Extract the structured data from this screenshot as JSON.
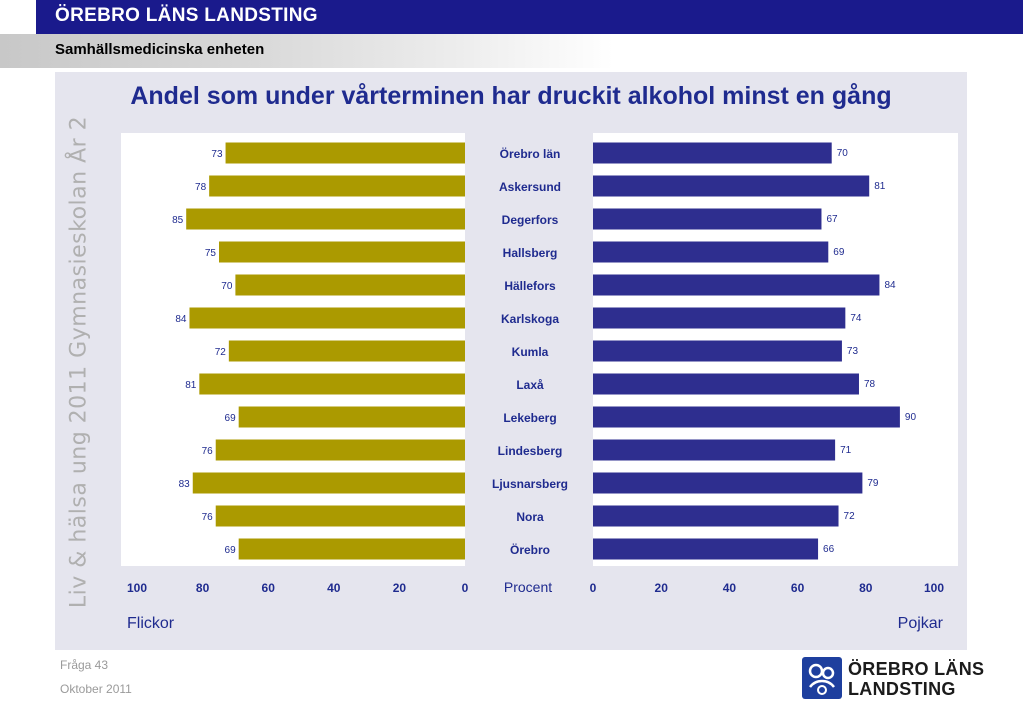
{
  "header": {
    "org_title": "ÖREBRO LÄNS LANDSTING",
    "subtitle": "Samhällsmedicinska enheten"
  },
  "side_text": "Liv & hälsa ung 2011 Gymnasieskolan År 2",
  "footer": {
    "question": "Fråga 43",
    "date": "Oktober 2011"
  },
  "logo": {
    "line1": "ÖREBRO LÄNS",
    "line2": "LANDSTING",
    "icon": "landsting-logo-icon",
    "color": "#1e3f9e"
  },
  "chart_data": {
    "type": "bar",
    "orientation": "horizontal-butterfly",
    "title": "Andel som under vårterminen har druckit alkohol minst en gång",
    "categories": [
      "Örebro län",
      "Askersund",
      "Degerfors",
      "Hallsberg",
      "Hällefors",
      "Karlskoga",
      "Kumla",
      "Laxå",
      "Lekeberg",
      "Lindesberg",
      "Ljusnarsberg",
      "Nora",
      "Örebro"
    ],
    "series": [
      {
        "name": "Flickor",
        "color": "#ab9a00",
        "values": [
          73,
          78,
          85,
          75,
          70,
          84,
          72,
          81,
          69,
          76,
          83,
          76,
          69
        ]
      },
      {
        "name": "Pojkar",
        "color": "#2e2e8f",
        "values": [
          70,
          81,
          67,
          69,
          84,
          74,
          73,
          78,
          90,
          71,
          79,
          72,
          66
        ]
      }
    ],
    "axis_center_label": "Procent",
    "left_ticks": [
      "100",
      "80",
      "60",
      "40",
      "20",
      "0"
    ],
    "right_ticks": [
      "0",
      "20",
      "40",
      "60",
      "80",
      "100"
    ],
    "xlim": [
      0,
      100
    ],
    "grid": false
  }
}
